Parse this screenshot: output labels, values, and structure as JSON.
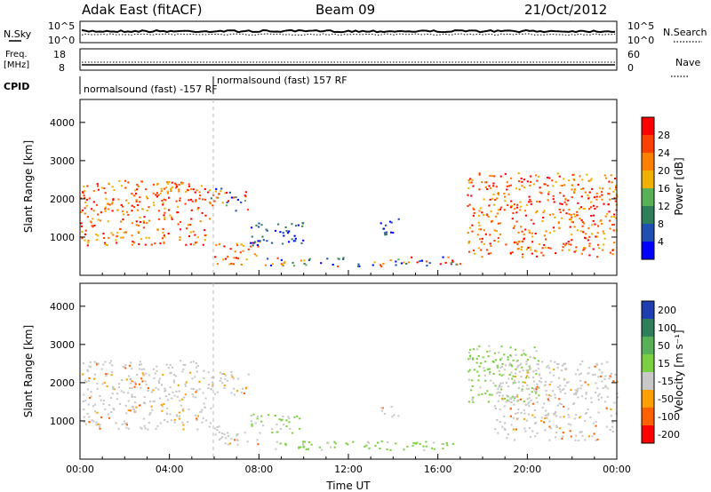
{
  "header": {
    "station": "Adak East (fitACF)",
    "beam": "Beam 09",
    "date": "21/Oct/2012"
  },
  "top_panels": {
    "nsky_label": "N.Sky",
    "nsearch_label": "N.Search",
    "noise_ticks_left": [
      "10^5",
      "10^0"
    ],
    "noise_ticks_right": [
      "10^5",
      "10^0"
    ],
    "freq_label_1": "Freq.",
    "freq_label_2": "[MHz]",
    "freq_ticks": [
      "18",
      "8"
    ],
    "nave_label": "Nave",
    "nave_ticks": [
      "60",
      "0"
    ],
    "cpid_label": "CPID",
    "cpid_left": "normalsound (fast) -157 RF",
    "cpid_right": "normalsound (fast) 157 RF"
  },
  "chart_data": [
    {
      "type": "heatmap",
      "title": "",
      "ylabel": "Slant Range [km]",
      "xlabel": "",
      "yticks": [
        "1000",
        "2000",
        "3000",
        "4000"
      ],
      "colorbar_label": "Power [dB]",
      "colorbar_ticks": [
        "4",
        "8",
        "12",
        "16",
        "20",
        "24",
        "28"
      ],
      "colors": [
        "#0000ff",
        "#1f4fb0",
        "#2e7d5b",
        "#58b058",
        "#f0b000",
        "#ff8000",
        "#ff4000",
        "#ff0000"
      ],
      "echo_regions_ut_km": [
        {
          "t": [
            0.0,
            5.9
          ],
          "km": [
            800,
            2500
          ],
          "level": "high"
        },
        {
          "t": [
            5.8,
            7.5
          ],
          "km": [
            1700,
            2300
          ],
          "level": "mixed"
        },
        {
          "t": [
            6.0,
            8.0
          ],
          "km": [
            300,
            900
          ],
          "level": "high"
        },
        {
          "t": [
            7.5,
            10.0
          ],
          "km": [
            800,
            1400
          ],
          "level": "low"
        },
        {
          "t": [
            13.4,
            14.3
          ],
          "km": [
            1000,
            1500
          ],
          "level": "low"
        },
        {
          "t": [
            17.3,
            24.0
          ],
          "km": [
            500,
            2700
          ],
          "level": "high"
        },
        {
          "t": [
            8.0,
            17.0
          ],
          "km": [
            250,
            500
          ],
          "level": "mixed"
        }
      ]
    },
    {
      "type": "heatmap",
      "title": "",
      "ylabel": "Slant Range [km]",
      "xlabel": "Time UT",
      "xticks": [
        "00:00",
        "04:00",
        "08:00",
        "12:00",
        "16:00",
        "20:00",
        "00:00"
      ],
      "yticks": [
        "1000",
        "2000",
        "3000",
        "4000"
      ],
      "colorbar_label": "Velocity [m s⁻¹]",
      "colorbar_ticks": [
        "200",
        "100",
        "50",
        "15",
        "-15",
        "-50",
        "-100",
        "-200"
      ],
      "colors": [
        "#1f3fb0",
        "#2e7d5b",
        "#58b058",
        "#7ad040",
        "#c8c8c8",
        "#ffa000",
        "#ff6000",
        "#ff0000"
      ],
      "echo_regions_ut_km": [
        {
          "t": [
            0.0,
            5.9
          ],
          "km": [
            800,
            2600
          ],
          "level": "grey"
        },
        {
          "t": [
            5.8,
            7.5
          ],
          "km": [
            1700,
            2300
          ],
          "level": "grey"
        },
        {
          "t": [
            6.0,
            8.0
          ],
          "km": [
            400,
            900
          ],
          "level": "grey"
        },
        {
          "t": [
            7.5,
            10.0
          ],
          "km": [
            700,
            1200
          ],
          "level": "green"
        },
        {
          "t": [
            13.4,
            14.3
          ],
          "km": [
            1100,
            1400
          ],
          "level": "grey"
        },
        {
          "t": [
            17.3,
            20.5
          ],
          "km": [
            1500,
            3000
          ],
          "level": "green"
        },
        {
          "t": [
            18.5,
            24.0
          ],
          "km": [
            500,
            2600
          ],
          "level": "grey"
        },
        {
          "t": [
            8.0,
            17.0
          ],
          "km": [
            250,
            500
          ],
          "level": "green"
        }
      ]
    }
  ]
}
